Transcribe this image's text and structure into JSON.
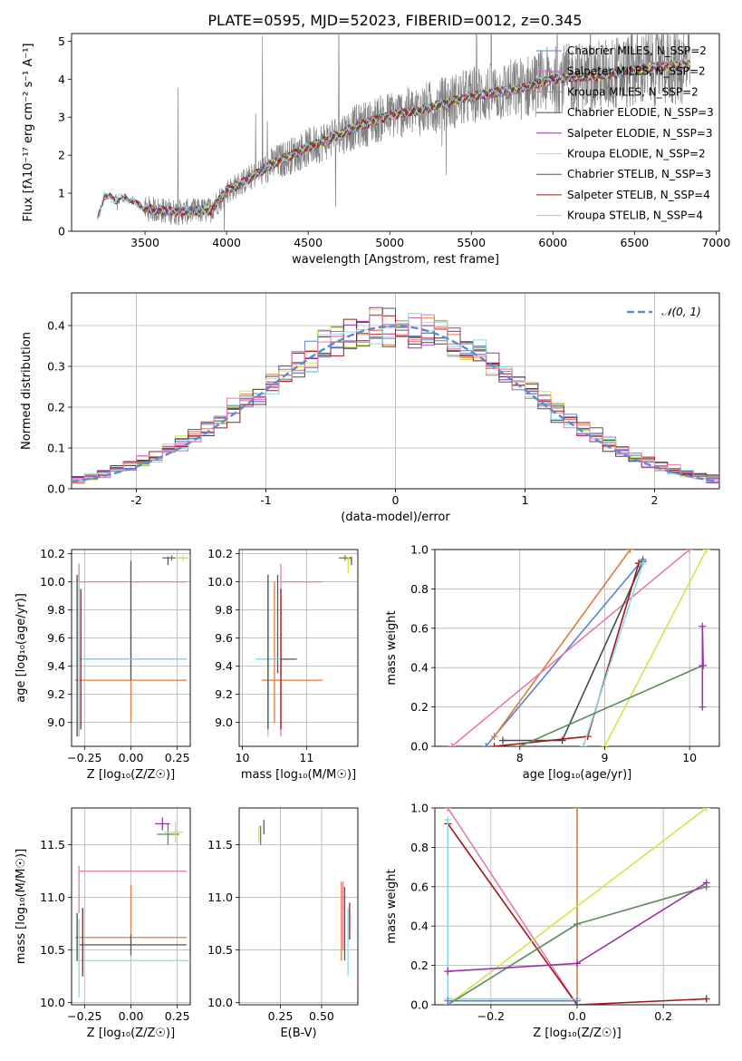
{
  "figure": {
    "title": "PLATE=0595, MJD=52023, FIBERID=0012, z=0.345"
  },
  "chart_data": [
    {
      "type": "line",
      "id": "spectrum",
      "xlabel": "wavelength [Angstrom, rest frame]",
      "ylabel": "Flux [fλ10⁻¹⁷ erg cm⁻² s⁻¹ A⁻¹]",
      "xlim": [
        3050,
        7020
      ],
      "ylim": [
        0,
        5.2
      ],
      "xticks": [
        3500,
        4000,
        4500,
        5000,
        5500,
        6000,
        6500,
        7000
      ],
      "yticks": [
        0,
        1,
        2,
        3,
        4,
        5
      ],
      "grid": false,
      "legend_position": "right",
      "observed_color": "#808080",
      "observed_range": [
        3210,
        6840
      ],
      "model_anchor_points": {
        "x": [
          3210,
          3250,
          3300,
          3400,
          3500,
          3700,
          3900,
          4000,
          4100,
          4300,
          4500,
          4800,
          5000,
          5200,
          5500,
          5800,
          6000,
          6300,
          6600,
          6840
        ],
        "y": [
          0.3,
          0.95,
          0.85,
          0.85,
          0.6,
          0.5,
          0.55,
          1.05,
          1.3,
          1.8,
          2.2,
          2.75,
          3.05,
          3.2,
          3.55,
          3.75,
          4.0,
          4.1,
          4.3,
          4.4
        ]
      },
      "series": [
        {
          "name": "Chabrier MILES, N_SSP=2",
          "color": "#5b7fd4",
          "start": 3500
        },
        {
          "name": "Salpeter MILES, N_SSP=2",
          "color": "#c06bc0",
          "start": 3500
        },
        {
          "name": "Kroupa MILES, N_SSP=2",
          "color": "#e07b39",
          "start": 3500
        },
        {
          "name": "Chabrier ELODIE, N_SSP=3",
          "color": "#4a4a4a",
          "start": 3500
        },
        {
          "name": "Salpeter ELODIE, N_SSP=3",
          "color": "#9b30a8",
          "start": 3500
        },
        {
          "name": "Kroupa ELODIE, N_SSP=2",
          "color": "#cde84a",
          "start": 3500
        },
        {
          "name": "Chabrier STELIB, N_SSP=3",
          "color": "#555555",
          "start": 3210
        },
        {
          "name": "Salpeter STELIB, N_SSP=4",
          "color": "#a01818",
          "start": 3210
        },
        {
          "name": "Kroupa STELIB, N_SSP=4",
          "color": "#8ad8e0",
          "start": 3210
        }
      ]
    },
    {
      "type": "line",
      "id": "residuals",
      "xlabel": "(data-model)/error",
      "ylabel": "Normed distribution",
      "xlim": [
        -2.5,
        2.5
      ],
      "ylim": [
        0,
        0.48
      ],
      "xticks": [
        -2,
        -1,
        0,
        1,
        2
      ],
      "yticks": [
        0.0,
        0.1,
        0.2,
        0.3,
        0.4
      ],
      "grid": true,
      "legend_position": "top-right",
      "gaussian": {
        "name": "𝒩(0, 1)",
        "color": "#5b8bd6",
        "dashed": true
      },
      "bin_width": 0.1,
      "histogram_colors": [
        "#5b7fd4",
        "#c06bc0",
        "#e07b39",
        "#4a4a4a",
        "#9b30a8",
        "#cde84a",
        "#555555",
        "#a01818",
        "#8ad8e0",
        "#e87aa8"
      ]
    },
    {
      "type": "scatter",
      "id": "age_vs_Z",
      "xlabel": "Z [log₁₀(Z/Z☉)]",
      "ylabel": "age  [log₁₀(age/yr)]",
      "xlim": [
        -0.32,
        0.32
      ],
      "ylim": [
        8.83,
        10.23
      ],
      "xticks": [
        -0.25,
        0.0,
        0.25
      ],
      "xtick_labels": [
        "−0.25",
        "0.00",
        "0.25"
      ],
      "yticks": [
        9.0,
        9.2,
        9.4,
        9.6,
        9.8,
        10.0,
        10.2
      ],
      "grid": true
    },
    {
      "type": "scatter",
      "id": "age_vs_mass",
      "xlabel": "mass [log₁₀(M/M☉)]",
      "xlim": [
        9.95,
        11.8
      ],
      "ylim": [
        8.83,
        10.23
      ],
      "xticks": [
        10,
        11
      ],
      "yticks": [
        9.0,
        9.2,
        9.4,
        9.6,
        9.8,
        10.0,
        10.2
      ],
      "grid": true
    },
    {
      "type": "line",
      "id": "weight_vs_age",
      "xlabel": "age  [log₁₀(age/yr)]",
      "ylabel": "mass weight",
      "xlim": [
        7.0,
        10.35
      ],
      "ylim": [
        0.0,
        1.0
      ],
      "xticks": [
        8,
        9,
        10
      ],
      "yticks": [
        0.0,
        0.2,
        0.4,
        0.6,
        0.8,
        1.0
      ],
      "grid": true,
      "series": [
        {
          "color": "#5b7fd4",
          "x": [
            7.6,
            9.45
          ],
          "y": [
            0.0,
            0.95
          ]
        },
        {
          "color": "#e07b39",
          "x": [
            7.7,
            9.3
          ],
          "y": [
            0.05,
            1.0
          ]
        },
        {
          "color": "#e87aa8",
          "x": [
            7.2,
            10.0
          ],
          "y": [
            0.0,
            1.0
          ]
        },
        {
          "color": "#4a4a4a",
          "x": [
            7.8,
            8.5,
            9.45
          ],
          "y": [
            0.03,
            0.03,
            0.94
          ]
        },
        {
          "color": "#a01818",
          "x": [
            7.7,
            8.8,
            9.4
          ],
          "y": [
            0.0,
            0.05,
            0.93
          ]
        },
        {
          "color": "#8ad8e0",
          "x": [
            8.75,
            9.45
          ],
          "y": [
            0.0,
            0.93
          ]
        },
        {
          "color": "#cde84a",
          "x": [
            9.0,
            10.2
          ],
          "y": [
            0.0,
            1.0
          ]
        },
        {
          "color": "#5e8a5e",
          "x": [
            8.0,
            10.15
          ],
          "y": [
            0.0,
            0.41
          ]
        },
        {
          "color": "#9b30a8",
          "x": [
            10.15,
            10.15,
            10.16
          ],
          "y": [
            0.2,
            0.61,
            0.41
          ]
        }
      ]
    },
    {
      "type": "scatter",
      "id": "mass_vs_Z",
      "xlabel": "Z [log₁₀(Z/Z☉)]",
      "ylabel": "mass [log₁₀(M/M☉)]",
      "xlim": [
        -0.32,
        0.32
      ],
      "ylim": [
        9.98,
        11.85
      ],
      "xticks": [
        -0.25,
        0.0,
        0.25
      ],
      "xtick_labels": [
        "−0.25",
        "0.00",
        "0.25"
      ],
      "yticks": [
        10.0,
        10.5,
        11.0,
        11.5
      ],
      "grid": true
    },
    {
      "type": "scatter",
      "id": "mass_vs_EBV",
      "xlabel": "E(B-V)",
      "xlim": [
        0.0,
        0.72
      ],
      "ylim": [
        9.98,
        11.85
      ],
      "xticks": [
        0.25,
        0.5
      ],
      "xtick_labels": [
        "0.25",
        "0.50"
      ],
      "yticks": [
        10.0,
        10.5,
        11.0,
        11.5
      ],
      "grid": true
    },
    {
      "type": "line",
      "id": "weight_vs_Z",
      "xlabel": "Z [log₁₀(Z/Z☉)]",
      "ylabel": "mass weight",
      "xlim": [
        -0.33,
        0.33
      ],
      "ylim": [
        0.0,
        1.0
      ],
      "xticks": [
        -0.2,
        0.0,
        0.2
      ],
      "xtick_labels": [
        "−0.2",
        "0.0",
        "0.2"
      ],
      "yticks": [
        0.0,
        0.2,
        0.4,
        0.6,
        0.8,
        1.0
      ],
      "grid": true,
      "series": [
        {
          "color": "#e07b39",
          "x": [
            0.0,
            0.0
          ],
          "y": [
            0.0,
            1.0
          ]
        },
        {
          "color": "#e87aa8",
          "x": [
            -0.3,
            0.0
          ],
          "y": [
            1.0,
            0.0
          ]
        },
        {
          "color": "#a01818",
          "x": [
            -0.3,
            0.0,
            0.3
          ],
          "y": [
            0.92,
            0.0,
            0.03
          ]
        },
        {
          "color": "#8ad8e0",
          "x": [
            -0.3,
            -0.3,
            0.0
          ],
          "y": [
            0.94,
            0.03,
            0.03
          ]
        },
        {
          "color": "#cde84a",
          "x": [
            -0.3,
            0.3
          ],
          "y": [
            0.0,
            1.0
          ]
        },
        {
          "color": "#5e8a5e",
          "x": [
            -0.3,
            0.0,
            0.3
          ],
          "y": [
            0.0,
            0.41,
            0.6
          ]
        },
        {
          "color": "#9b30a8",
          "x": [
            -0.3,
            0.0,
            0.3
          ],
          "y": [
            0.17,
            0.21,
            0.62
          ]
        },
        {
          "color": "#5b7fd4",
          "x": [
            -0.3,
            0.0
          ],
          "y": [
            0.02,
            0.02
          ]
        }
      ]
    }
  ]
}
